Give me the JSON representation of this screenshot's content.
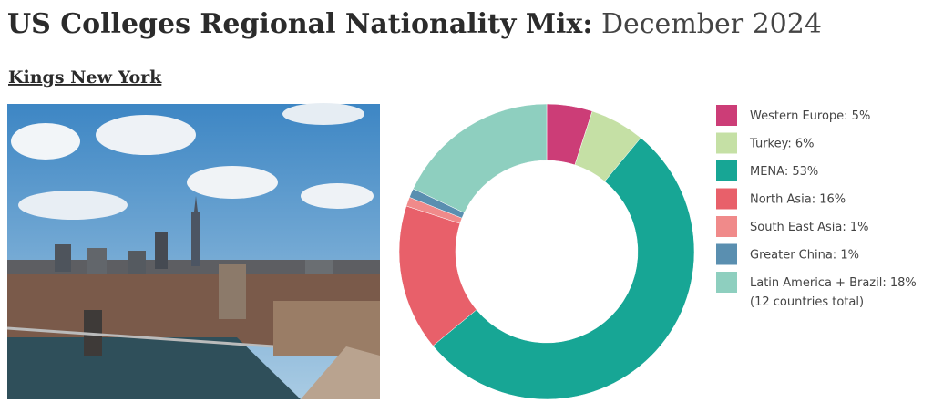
{
  "header": {
    "title_bold": "US Colleges Regional Nationality Mix:",
    "title_light": "December 2024"
  },
  "section": "Kings New York",
  "chart_data": {
    "type": "donut",
    "categories": [
      "Western Europe: 5%",
      "Turkey: 6%",
      "MENA: 53%",
      "North Asia: 16%",
      "South East Asia: 1%",
      "Greater China: 1%",
      "Latin America + Brazil: 18%"
    ],
    "values": [
      5,
      6,
      53,
      16,
      1,
      1,
      18
    ],
    "colors": [
      "#cc3d77",
      "#c5e0a5",
      "#17a695",
      "#e8606a",
      "#f08a8a",
      "#5a8fb0",
      "#8ecfbf"
    ],
    "note": "(12 countries total)",
    "legend": "right"
  }
}
